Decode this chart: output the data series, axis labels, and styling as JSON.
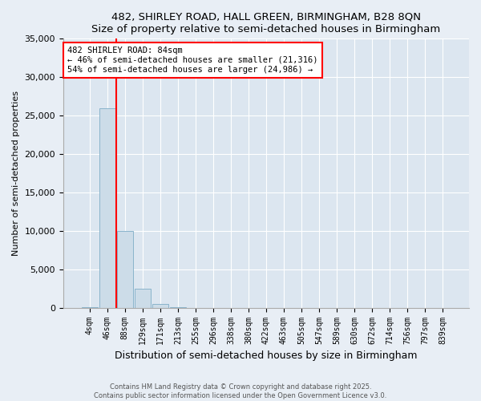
{
  "title": "482, SHIRLEY ROAD, HALL GREEN, BIRMINGHAM, B28 8QN",
  "subtitle": "Size of property relative to semi-detached houses in Birmingham",
  "xlabel": "Distribution of semi-detached houses by size in Birmingham",
  "ylabel": "Number of semi-detached properties",
  "categories": [
    "4sqm",
    "46sqm",
    "88sqm",
    "129sqm",
    "171sqm",
    "213sqm",
    "255sqm",
    "296sqm",
    "338sqm",
    "380sqm",
    "422sqm",
    "463sqm",
    "505sqm",
    "547sqm",
    "589sqm",
    "630sqm",
    "672sqm",
    "714sqm",
    "756sqm",
    "797sqm",
    "839sqm"
  ],
  "values": [
    100,
    26000,
    10000,
    2500,
    500,
    80,
    20,
    10,
    5,
    3,
    2,
    1,
    1,
    0,
    0,
    0,
    0,
    0,
    0,
    0,
    0
  ],
  "bar_color": "#ccdce8",
  "bar_edge_color": "#8ab4cc",
  "red_line_x": 1.5,
  "annotation_text_line1": "482 SHIRLEY ROAD: 84sqm",
  "annotation_text_line2": "← 46% of semi-detached houses are smaller (21,316)",
  "annotation_text_line3": "54% of semi-detached houses are larger (24,986) →",
  "ylim": [
    0,
    35000
  ],
  "yticks": [
    0,
    5000,
    10000,
    15000,
    20000,
    25000,
    30000,
    35000
  ],
  "footer_line1": "Contains HM Land Registry data © Crown copyright and database right 2025.",
  "footer_line2": "Contains public sector information licensed under the Open Government Licence v3.0.",
  "bg_color": "#e8eef5",
  "plot_bg_color": "#dce6f0"
}
